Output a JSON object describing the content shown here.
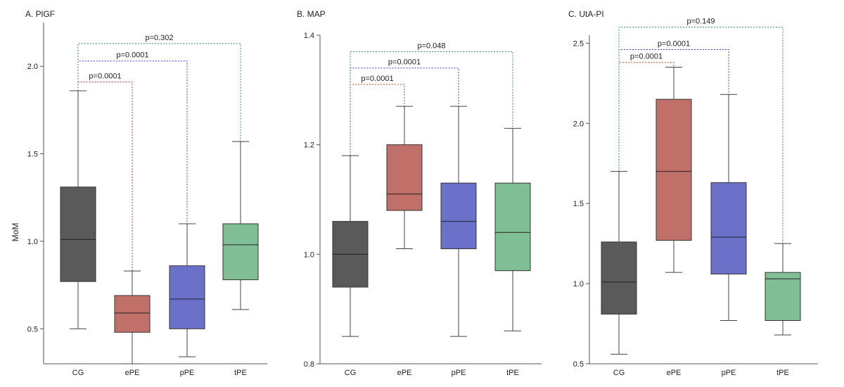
{
  "figure": {
    "ylabel": "MoM"
  },
  "chart_data": [
    {
      "type": "boxplot",
      "title": "A. PlGF",
      "ylabel": "MoM",
      "ylim": [
        0.3,
        2.25
      ],
      "yticks": [
        0.5,
        1.0,
        1.5,
        2.0
      ],
      "ytick_labels": [
        "0.5",
        "1.0",
        "1.5",
        "2.0"
      ],
      "categories": [
        "CG",
        "ePE",
        "pPE",
        "tPE"
      ],
      "series": [
        {
          "category": "CG",
          "whisker_low": 0.5,
          "q1": 0.77,
          "median": 1.01,
          "q3": 1.31,
          "whisker_high": 1.86,
          "color": "#5a5a5a"
        },
        {
          "category": "ePE",
          "whisker_low": 0.3,
          "q1": 0.48,
          "median": 0.59,
          "q3": 0.69,
          "whisker_high": 0.83,
          "color": "#c07068"
        },
        {
          "category": "pPE",
          "whisker_low": 0.34,
          "q1": 0.5,
          "median": 0.67,
          "q3": 0.86,
          "whisker_high": 1.1,
          "color": "#6b70c8"
        },
        {
          "category": "tPE",
          "whisker_low": 0.61,
          "q1": 0.78,
          "median": 0.98,
          "q3": 1.1,
          "whisker_high": 1.57,
          "color": "#80bf95"
        }
      ],
      "comparisons": [
        {
          "from": "CG",
          "to": "ePE",
          "label": "p=0.0001",
          "y": 1.91,
          "color": "#c0392b"
        },
        {
          "from": "CG",
          "to": "pPE",
          "label": "p=0.0001",
          "y": 2.03,
          "color": "#3b3bc0"
        },
        {
          "from": "CG",
          "to": "tPE",
          "label": "p=0.302",
          "y": 2.13,
          "color": "#2e8b57"
        }
      ]
    },
    {
      "type": "boxplot",
      "title": "B. MAP",
      "ylabel": "",
      "ylim": [
        0.8,
        1.4
      ],
      "yticks": [
        0.8,
        1.0,
        1.2,
        1.4
      ],
      "ytick_labels": [
        "0.8",
        "1.0",
        "1.2",
        "1.4"
      ],
      "categories": [
        "CG",
        "ePE",
        "pPE",
        "tPE"
      ],
      "series": [
        {
          "category": "CG",
          "whisker_low": 0.85,
          "q1": 0.94,
          "median": 1.0,
          "q3": 1.06,
          "whisker_high": 1.18,
          "color": "#5a5a5a"
        },
        {
          "category": "ePE",
          "whisker_low": 1.01,
          "q1": 1.08,
          "median": 1.11,
          "q3": 1.2,
          "whisker_high": 1.27,
          "color": "#c07068"
        },
        {
          "category": "pPE",
          "whisker_low": 0.85,
          "q1": 1.01,
          "median": 1.06,
          "q3": 1.13,
          "whisker_high": 1.27,
          "color": "#6b70c8"
        },
        {
          "category": "tPE",
          "whisker_low": 0.86,
          "q1": 0.97,
          "median": 1.04,
          "q3": 1.13,
          "whisker_high": 1.23,
          "color": "#80bf95"
        }
      ],
      "comparisons": [
        {
          "from": "CG",
          "to": "ePE",
          "label": "p=0.0001",
          "y": 1.31,
          "color": "#c0392b"
        },
        {
          "from": "CG",
          "to": "pPE",
          "label": "p=0.0001",
          "y": 1.34,
          "color": "#3b3bc0"
        },
        {
          "from": "CG",
          "to": "tPE",
          "label": "p=0.048",
          "y": 1.37,
          "color": "#2e8b57"
        }
      ]
    },
    {
      "type": "boxplot",
      "title": "C. UtA-PI",
      "ylabel": "",
      "ylim": [
        0.5,
        2.55
      ],
      "yticks": [
        0.5,
        1.0,
        1.5,
        2.0,
        2.5
      ],
      "ytick_labels": [
        "0.5",
        "1.0",
        "1.5",
        "2.0",
        "2.5"
      ],
      "categories": [
        "CG",
        "ePE",
        "pPE",
        "tPE"
      ],
      "series": [
        {
          "category": "CG",
          "whisker_low": 0.56,
          "q1": 0.81,
          "median": 1.01,
          "q3": 1.26,
          "whisker_high": 1.7,
          "color": "#5a5a5a"
        },
        {
          "category": "ePE",
          "whisker_low": 1.07,
          "q1": 1.27,
          "median": 1.7,
          "q3": 2.15,
          "whisker_high": 2.35,
          "color": "#c07068"
        },
        {
          "category": "pPE",
          "whisker_low": 0.77,
          "q1": 1.06,
          "median": 1.29,
          "q3": 1.63,
          "whisker_high": 2.18,
          "color": "#6b70c8"
        },
        {
          "category": "tPE",
          "whisker_low": 0.68,
          "q1": 0.77,
          "median": 1.03,
          "q3": 1.07,
          "whisker_high": 1.25,
          "color": "#80bf95"
        }
      ],
      "comparisons": [
        {
          "from": "CG",
          "to": "ePE",
          "label": "p=0.0001",
          "y": 2.38,
          "color": "#c0392b"
        },
        {
          "from": "CG",
          "to": "pPE",
          "label": "p=0.0001",
          "y": 2.46,
          "color": "#3b3bc0"
        },
        {
          "from": "CG",
          "to": "tPE",
          "label": "p=0.149",
          "y": 2.6,
          "color": "#2e8b57"
        }
      ]
    }
  ]
}
